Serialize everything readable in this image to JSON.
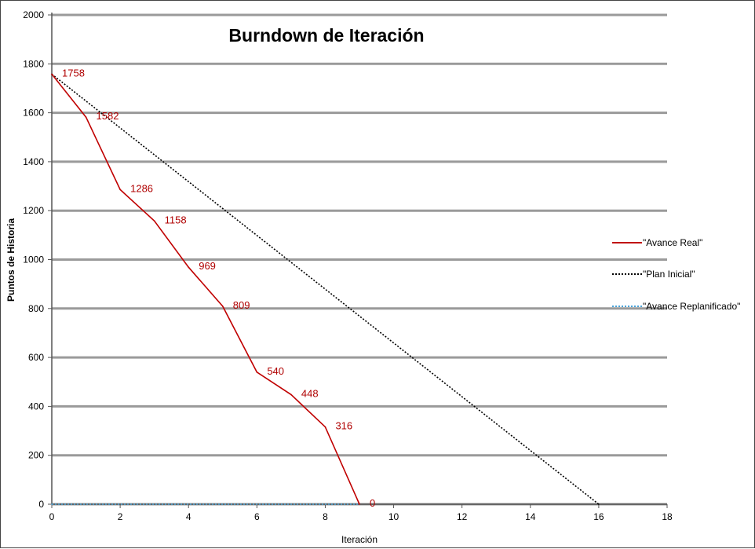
{
  "chart_data": {
    "type": "line",
    "title": "Burndown de Iteración",
    "xlabel": "Iteración",
    "ylabel": "Puntos de Historia",
    "xlim": [
      0,
      18
    ],
    "ylim": [
      0,
      2000
    ],
    "xticks": [
      0,
      2,
      4,
      6,
      8,
      10,
      12,
      14,
      16,
      18
    ],
    "yticks": [
      0,
      200,
      400,
      600,
      800,
      1000,
      1200,
      1400,
      1600,
      1800,
      2000
    ],
    "grid": "horizontal",
    "legend_position": "right",
    "series": [
      {
        "name": "\"Avance Real\"",
        "color": "#c00000",
        "style": "solid",
        "points": [
          [
            0,
            1758
          ],
          [
            1,
            1582
          ],
          [
            2,
            1286
          ],
          [
            3,
            1158
          ],
          [
            4,
            969
          ],
          [
            5,
            809
          ],
          [
            6,
            540
          ],
          [
            7,
            448
          ],
          [
            8,
            316
          ],
          [
            9,
            0
          ]
        ],
        "data_labels": [
          "1758",
          "1582",
          "1286",
          "1158",
          "969",
          "809",
          "540",
          "448",
          "316",
          "0"
        ]
      },
      {
        "name": "\"Plan Inicial\"",
        "color": "#000000",
        "style": "dotted",
        "points": [
          [
            0,
            1758
          ],
          [
            16,
            0
          ]
        ]
      },
      {
        "name": "\"Avance Replanificado\"",
        "color": "#4aa3d8",
        "style": "dotted",
        "points": [
          [
            0,
            0
          ],
          [
            9,
            0
          ]
        ]
      }
    ]
  }
}
